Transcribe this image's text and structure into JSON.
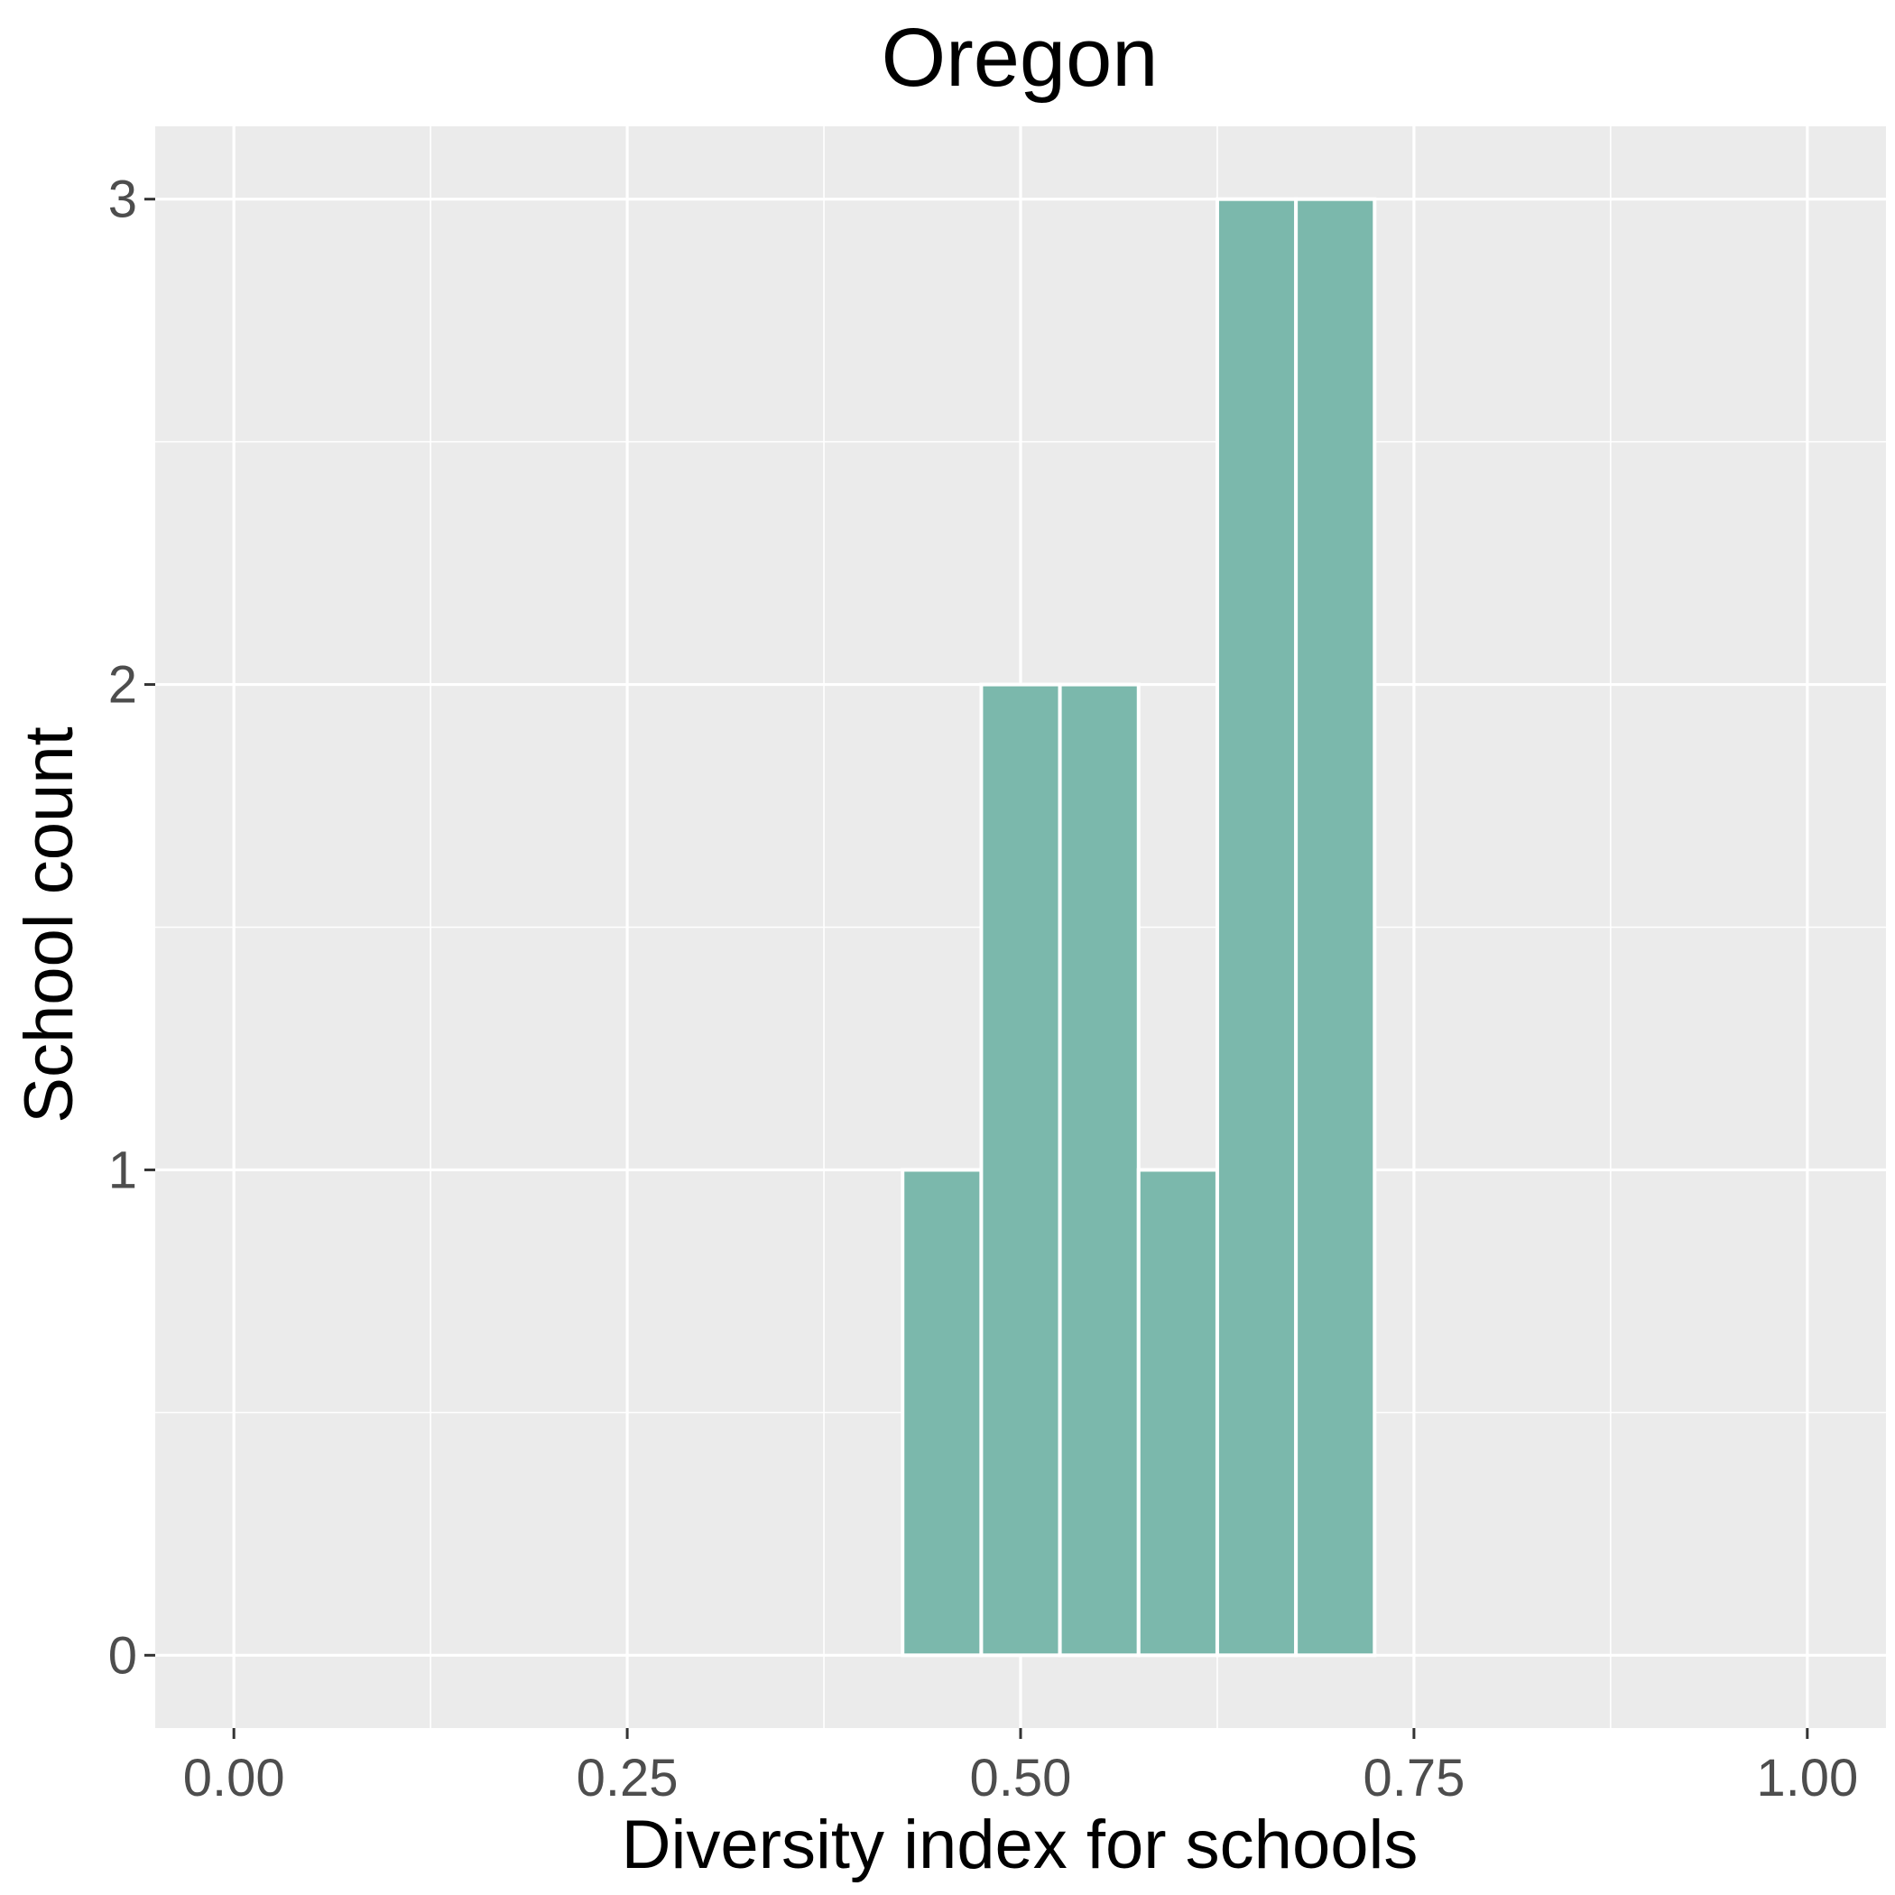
{
  "chart_data": {
    "type": "bar",
    "title": "Oregon",
    "xlabel": "Diversity index for schools",
    "ylabel": "School count",
    "xlim": [
      -0.05,
      1.05
    ],
    "ylim": [
      -0.15,
      3.15
    ],
    "x_ticks": [
      {
        "value": 0.0,
        "label": "0.00"
      },
      {
        "value": 0.25,
        "label": "0.25"
      },
      {
        "value": 0.5,
        "label": "0.50"
      },
      {
        "value": 0.75,
        "label": "0.75"
      },
      {
        "value": 1.0,
        "label": "1.00"
      }
    ],
    "y_ticks": [
      {
        "value": 0,
        "label": "0"
      },
      {
        "value": 1,
        "label": "1"
      },
      {
        "value": 2,
        "label": "2"
      },
      {
        "value": 3,
        "label": "3"
      }
    ],
    "bins": [
      {
        "x0": 0.425,
        "x1": 0.475,
        "count": 1
      },
      {
        "x0": 0.475,
        "x1": 0.525,
        "count": 2
      },
      {
        "x0": 0.525,
        "x1": 0.575,
        "count": 2
      },
      {
        "x0": 0.575,
        "x1": 0.625,
        "count": 1
      },
      {
        "x0": 0.625,
        "x1": 0.675,
        "count": 3
      },
      {
        "x0": 0.675,
        "x1": 0.725,
        "count": 3
      }
    ],
    "bar_color": "#7bb8ac",
    "panel_background": "#ebebeb",
    "grid": true,
    "legend": "none"
  }
}
